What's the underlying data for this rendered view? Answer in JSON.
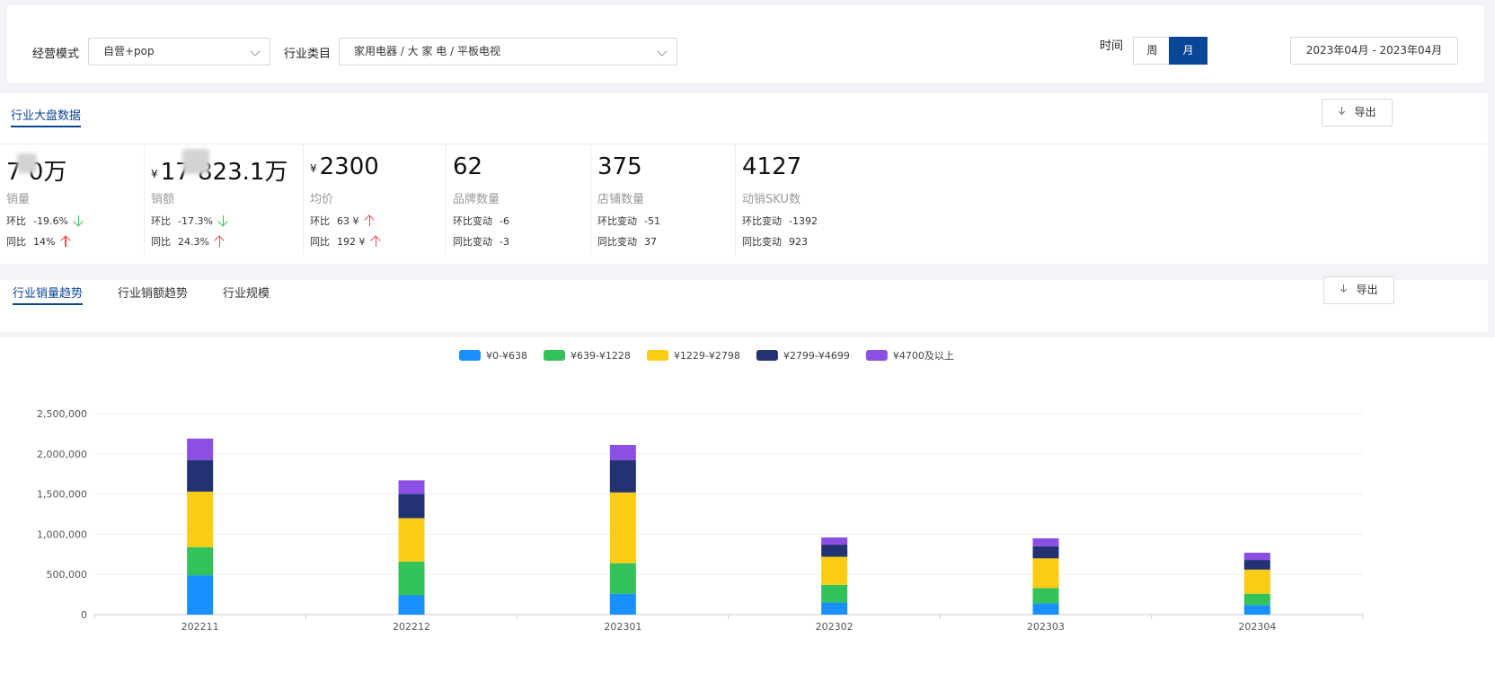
{
  "filters": {
    "mode_label": "经营模式",
    "mode_value": "自营+pop",
    "category_label": "行业类目",
    "category_value": "家用电器 / 大 家 电 / 平板电视",
    "time_label": "时间",
    "week_label": "周",
    "month_label": "月",
    "date_range": "2023年04月 - 2023年04月"
  },
  "market": {
    "tab_label": "行业大盘数据",
    "export_label": "导出",
    "metrics": [
      {
        "value": "7  0万",
        "currency": "",
        "name": "销量",
        "row1_label": "环比",
        "row1_value": "-19.6%",
        "row1_dir": "down",
        "row2_label": "同比",
        "row2_value": "14%",
        "row2_dir": "up"
      },
      {
        "value": "17    823.1万",
        "currency": "¥",
        "name": "销额",
        "row1_label": "环比",
        "row1_value": "-17.3%",
        "row1_dir": "down",
        "row2_label": "同比",
        "row2_value": "24.3%",
        "row2_dir": "up"
      },
      {
        "value": "2300",
        "currency": "¥",
        "name": "均价",
        "row1_label": "环比",
        "row1_value": "63 ¥",
        "row1_dir": "up",
        "row2_label": "同比",
        "row2_value": "192 ¥",
        "row2_dir": "up"
      },
      {
        "value": "62",
        "currency": "",
        "name": "品牌数量",
        "row1_label": "环比变动",
        "row1_value": "-6",
        "row1_dir": "",
        "row2_label": "同比变动",
        "row2_value": "-3",
        "row2_dir": ""
      },
      {
        "value": "375",
        "currency": "",
        "name": "店铺数量",
        "row1_label": "环比变动",
        "row1_value": "-51",
        "row1_dir": "",
        "row2_label": "同比变动",
        "row2_value": "37",
        "row2_dir": ""
      },
      {
        "value": "4127",
        "currency": "",
        "name": "动销SKU数",
        "row1_label": "环比变动",
        "row1_value": "-1392",
        "row1_dir": "",
        "row2_label": "同比变动",
        "row2_value": "923",
        "row2_dir": ""
      }
    ]
  },
  "trend": {
    "tabs": [
      "行业销量趋势",
      "行业销额趋势",
      "行业规模"
    ],
    "export_label": "导出"
  },
  "colors": {
    "accent": "#0a4697",
    "up": "#f04a4a",
    "down": "#34c056"
  },
  "chart_data": {
    "type": "bar",
    "stacked": true,
    "categories": [
      "202211",
      "202212",
      "202301",
      "202302",
      "202303",
      "202304"
    ],
    "ylim": [
      0,
      2500000
    ],
    "yticks": [
      0,
      500000,
      1000000,
      1500000,
      2000000,
      2500000
    ],
    "ytick_labels": [
      "0",
      "500,000",
      "1,000,000",
      "1,500,000",
      "2,000,000",
      "2,500,000"
    ],
    "legend_position": "top-center",
    "series": [
      {
        "name": "¥0-¥638",
        "color": "#1890ff",
        "values": [
          490000,
          240000,
          260000,
          150000,
          140000,
          120000
        ]
      },
      {
        "name": "¥639-¥1228",
        "color": "#33c15a",
        "values": [
          350000,
          420000,
          380000,
          220000,
          190000,
          140000
        ]
      },
      {
        "name": "¥1229-¥2798",
        "color": "#facc14",
        "values": [
          690000,
          540000,
          880000,
          350000,
          370000,
          300000
        ]
      },
      {
        "name": "¥2799-¥4699",
        "color": "#223273",
        "values": [
          390000,
          300000,
          400000,
          150000,
          150000,
          120000
        ]
      },
      {
        "name": "¥4700及以上",
        "color": "#8c4fe3",
        "values": [
          270000,
          170000,
          190000,
          90000,
          100000,
          90000
        ]
      }
    ]
  }
}
